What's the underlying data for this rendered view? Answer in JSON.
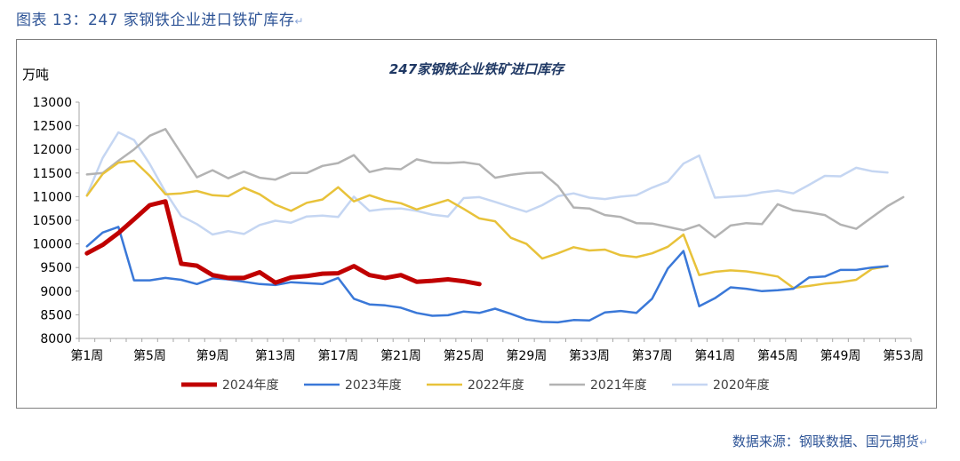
{
  "caption": {
    "figure_no": "图表 13：",
    "text": "247 家钢铁企业进口铁矿库存"
  },
  "return_mark": "↵",
  "source": "数据来源：钢联数据、国元期货",
  "chart_data": {
    "type": "line",
    "title": "247家钢铁企业铁矿进口库存",
    "ylabel": "万吨",
    "xlabel": "",
    "ylim": [
      8000,
      13000
    ],
    "yticks": [
      8000,
      8500,
      9000,
      9500,
      10000,
      10500,
      11000,
      11500,
      12000,
      12500,
      13000
    ],
    "x_categories": [
      "第1周",
      "第2周",
      "第3周",
      "第4周",
      "第5周",
      "第6周",
      "第7周",
      "第8周",
      "第9周",
      "第10周",
      "第11周",
      "第12周",
      "第13周",
      "第14周",
      "第15周",
      "第16周",
      "第17周",
      "第18周",
      "第19周",
      "第20周",
      "第21周",
      "第22周",
      "第23周",
      "第24周",
      "第25周",
      "第26周",
      "第27周",
      "第28周",
      "第29周",
      "第30周",
      "第31周",
      "第32周",
      "第33周",
      "第34周",
      "第35周",
      "第36周",
      "第37周",
      "第38周",
      "第39周",
      "第40周",
      "第41周",
      "第42周",
      "第43周",
      "第44周",
      "第45周",
      "第46周",
      "第47周",
      "第48周",
      "第49周",
      "第50周",
      "第51周",
      "第52周",
      "第53周"
    ],
    "xtick_labels": [
      "第1周",
      "第5周",
      "第9周",
      "第13周",
      "第17周",
      "第21周",
      "第25周",
      "第29周",
      "第33周",
      "第37周",
      "第41周",
      "第45周",
      "第49周",
      "第53周"
    ],
    "legend_position": "bottom",
    "grid": false,
    "series": [
      {
        "name": "2024年度",
        "color": "#c00000",
        "width": 5,
        "values": [
          9800,
          9980,
          10230,
          10520,
          10820,
          10900,
          9580,
          9540,
          9340,
          9280,
          9280,
          9400,
          9180,
          9290,
          9320,
          9370,
          9380,
          9530,
          9340,
          9280,
          9340,
          9200,
          9220,
          9250,
          9210,
          9150
        ]
      },
      {
        "name": "2023年度",
        "color": "#3a78d8",
        "width": 2.5,
        "values": [
          9950,
          10240,
          10360,
          9230,
          9230,
          9280,
          9240,
          9150,
          9270,
          9250,
          9200,
          9150,
          9130,
          9190,
          9170,
          9150,
          9280,
          8840,
          8720,
          8700,
          8650,
          8540,
          8480,
          8490,
          8570,
          8540,
          8630,
          8520,
          8400,
          8350,
          8340,
          8390,
          8380,
          8550,
          8580,
          8540,
          8840,
          9480,
          9850,
          8680,
          8850,
          9080,
          9050,
          9000,
          9020,
          9050,
          9290,
          9310,
          9450,
          9450,
          9500,
          9530
        ]
      },
      {
        "name": "2022年度",
        "color": "#e8c23a",
        "width": 2.5,
        "values": [
          11020,
          11480,
          11720,
          11760,
          11440,
          11050,
          11070,
          11120,
          11030,
          11010,
          11190,
          11050,
          10830,
          10700,
          10870,
          10940,
          11200,
          10900,
          11030,
          10920,
          10860,
          10730,
          10830,
          10930,
          10740,
          10540,
          10480,
          10130,
          10000,
          9690,
          9800,
          9930,
          9860,
          9880,
          9760,
          9720,
          9800,
          9940,
          10200,
          9340,
          9410,
          9440,
          9420,
          9370,
          9310,
          9070,
          9110,
          9160,
          9190,
          9240,
          9470,
          9530
        ]
      },
      {
        "name": "2021年度",
        "color": "#b3b3b3",
        "width": 2.5,
        "values": [
          11470,
          11500,
          11760,
          12000,
          12290,
          12430,
          11920,
          11410,
          11560,
          11390,
          11530,
          11400,
          11360,
          11500,
          11500,
          11650,
          11710,
          11880,
          11520,
          11600,
          11580,
          11790,
          11720,
          11710,
          11730,
          11680,
          11400,
          11460,
          11500,
          11510,
          11230,
          10770,
          10750,
          10610,
          10570,
          10440,
          10430,
          10360,
          10290,
          10400,
          10140,
          10390,
          10440,
          10420,
          10840,
          10710,
          10670,
          10610,
          10410,
          10320,
          10560,
          10800,
          10990
        ]
      },
      {
        "name": "2020年度",
        "color": "#c5d6f2",
        "width": 2.5,
        "values": [
          11030,
          11820,
          12360,
          12200,
          11690,
          11100,
          10590,
          10420,
          10200,
          10270,
          10210,
          10400,
          10490,
          10450,
          10580,
          10600,
          10570,
          11000,
          10700,
          10740,
          10750,
          10700,
          10620,
          10580,
          10970,
          10990,
          10890,
          10780,
          10680,
          10820,
          11010,
          11070,
          10980,
          10950,
          11000,
          11030,
          11190,
          11320,
          11700,
          11870,
          10980,
          11000,
          11020,
          11090,
          11130,
          11070,
          11250,
          11440,
          11430,
          11610,
          11540,
          11510
        ]
      }
    ]
  }
}
